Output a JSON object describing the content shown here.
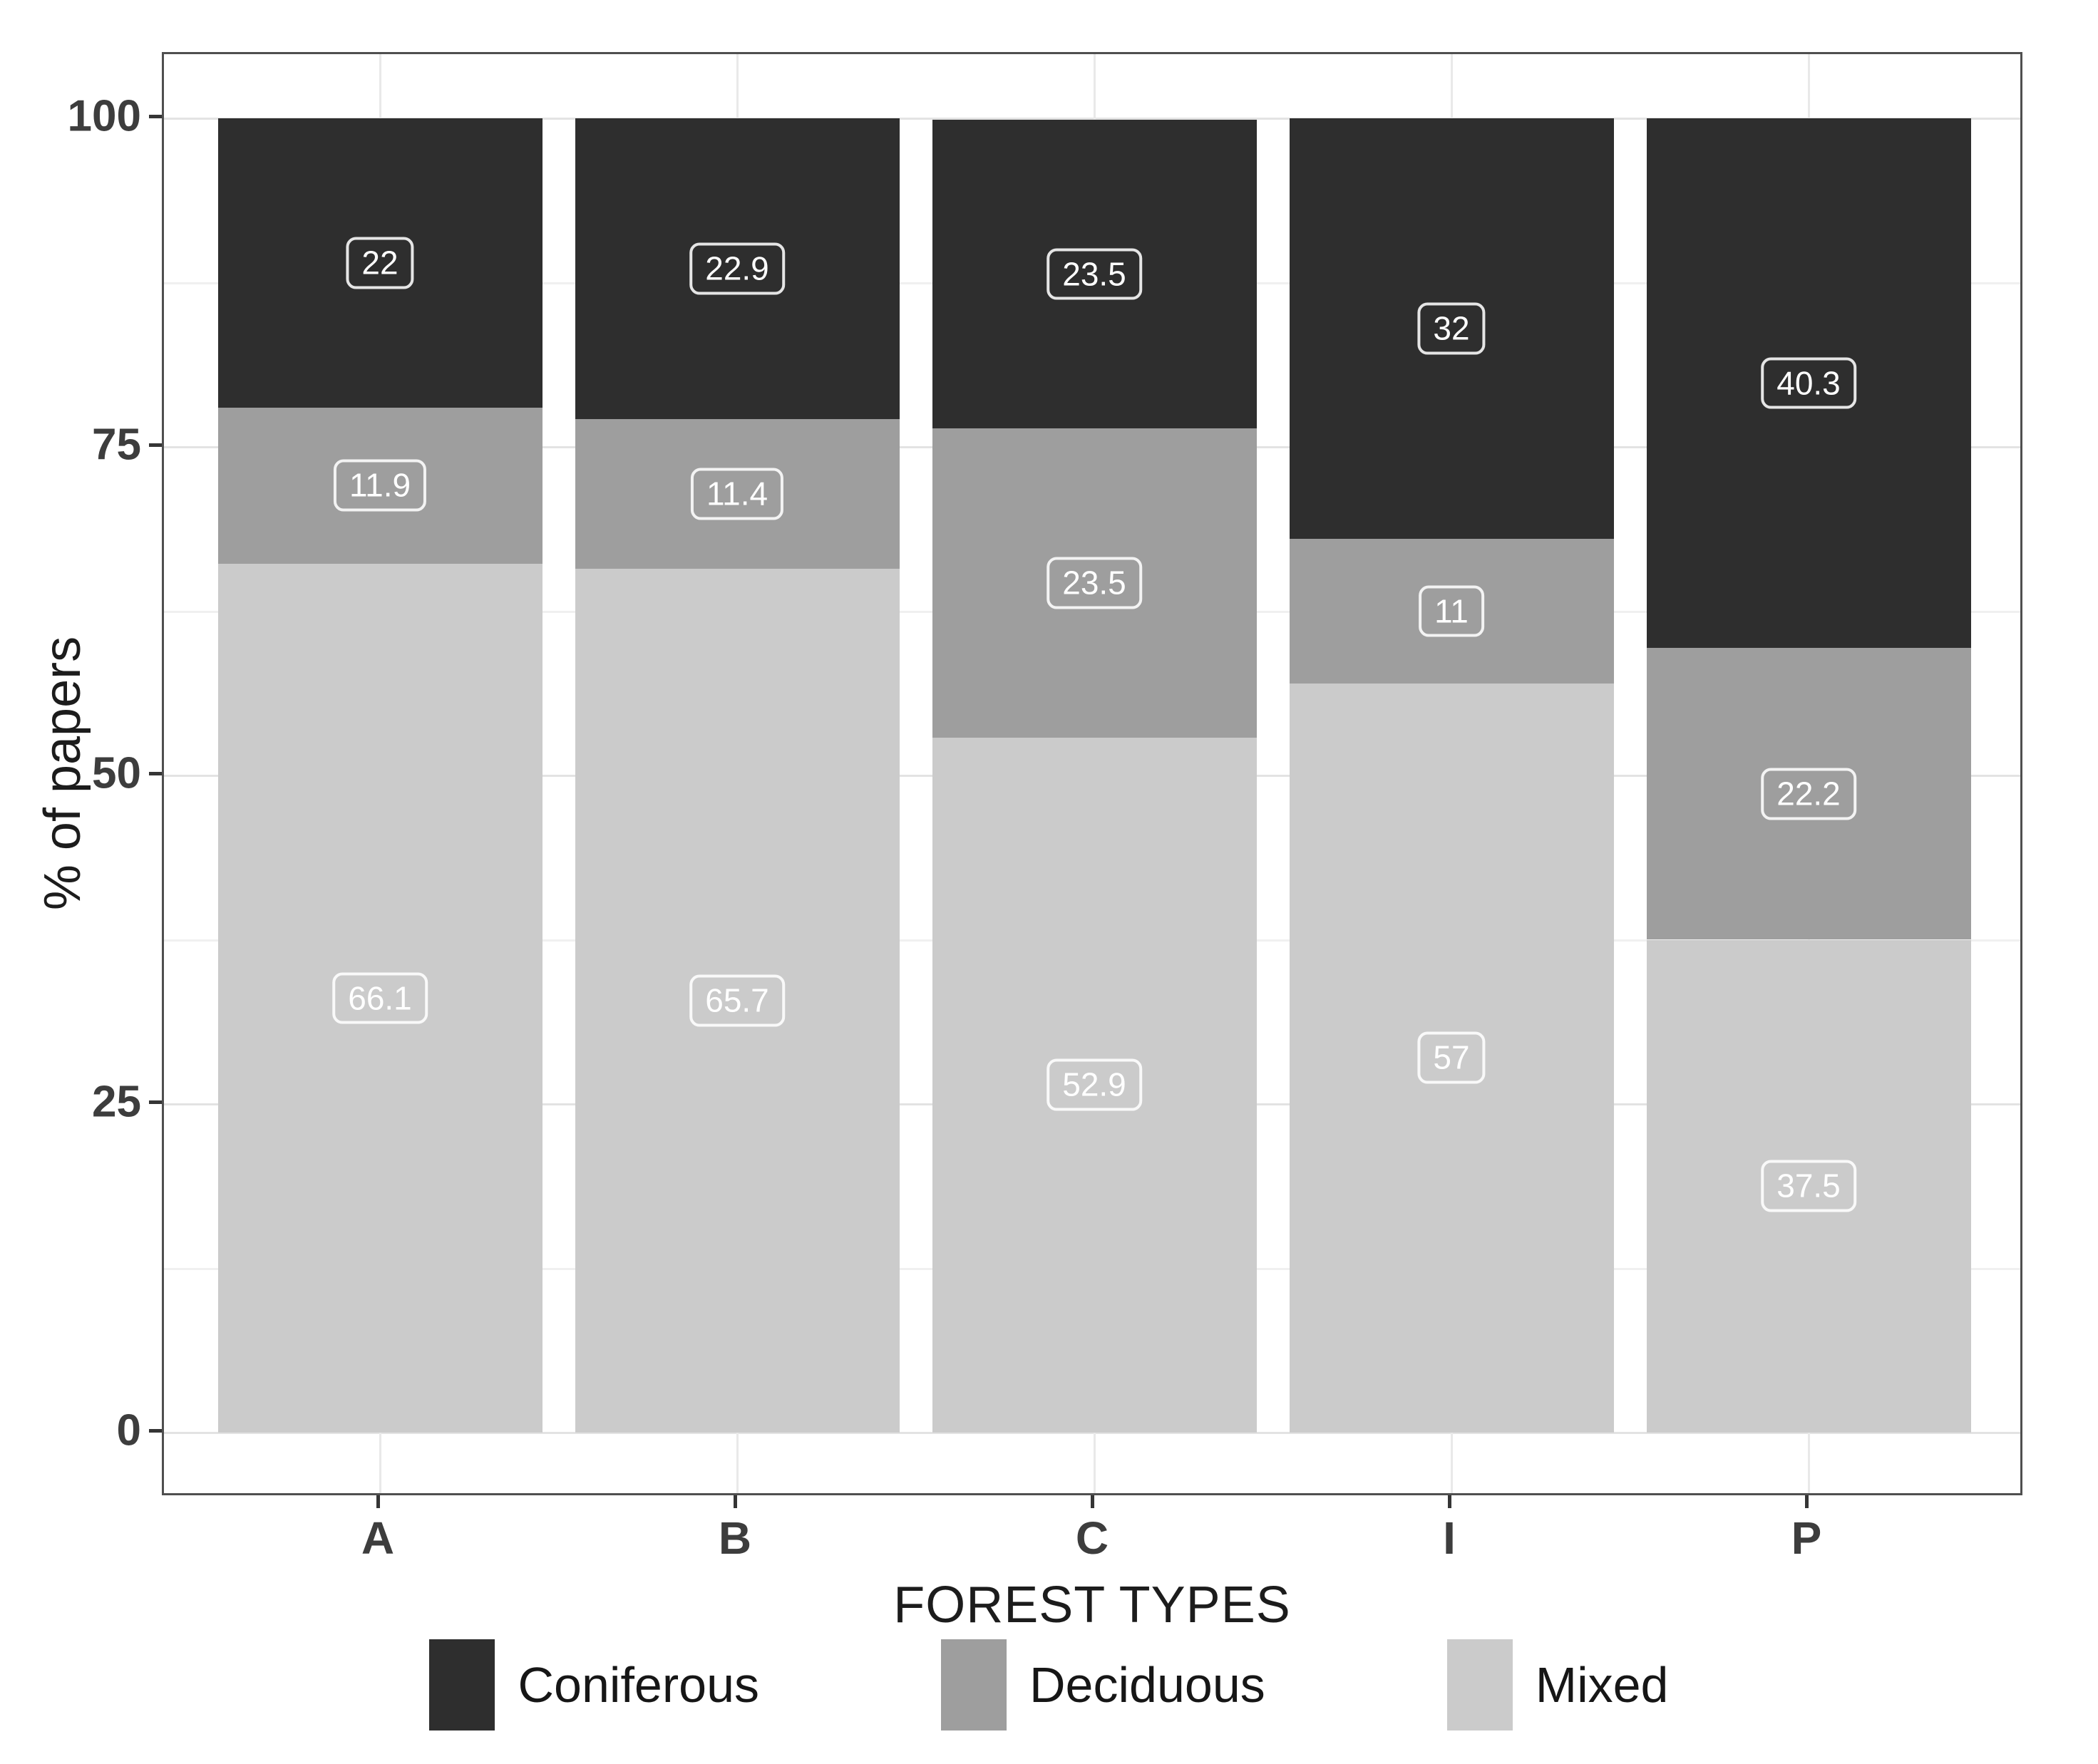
{
  "chart_data": {
    "type": "bar",
    "stacked": true,
    "title": "",
    "xlabel": "FOREST TYPES",
    "ylabel": "% of papers",
    "categories": [
      "A",
      "B",
      "C",
      "I",
      "P"
    ],
    "series": [
      {
        "name": "Coniferous",
        "color": "#2e2e2e",
        "values": [
          22,
          22.9,
          23.5,
          32,
          40.3
        ]
      },
      {
        "name": "Deciduous",
        "color": "#9e9e9e",
        "values": [
          11.9,
          11.4,
          23.5,
          11,
          22.2
        ]
      },
      {
        "name": "Mixed",
        "color": "#cbcbcb",
        "values": [
          66.1,
          65.7,
          52.9,
          57,
          37.5
        ]
      }
    ],
    "stack_order_bottom_to_top": [
      "Mixed",
      "Deciduous",
      "Coniferous"
    ],
    "value_labels": {
      "A": {
        "Coniferous": "22",
        "Deciduous": "11.9",
        "Mixed": "66.1"
      },
      "B": {
        "Coniferous": "22.9",
        "Deciduous": "11.4",
        "Mixed": "65.7"
      },
      "C": {
        "Coniferous": "23.5",
        "Deciduous": "23.5",
        "Mixed": "52.9"
      },
      "I": {
        "Coniferous": "32",
        "Deciduous": "11",
        "Mixed": "57"
      },
      "P": {
        "Coniferous": "40.3",
        "Deciduous": "22.2",
        "Mixed": "37.5"
      }
    },
    "y_ticks": [
      0,
      25,
      50,
      75,
      100
    ],
    "y_minor_ticks": [
      12.5,
      37.5,
      62.5,
      87.5
    ],
    "ylim": [
      0,
      100
    ],
    "grid": "major+minor horizontal, major vertical at categories",
    "legend_position": "bottom",
    "colors": {
      "grid_major": "#e3e3e3",
      "grid_minor": "#f0f0f0",
      "panel_border": "#4f4f4f",
      "axis_text": "#3d3d3d",
      "label_box_text": "#ffffff"
    }
  }
}
